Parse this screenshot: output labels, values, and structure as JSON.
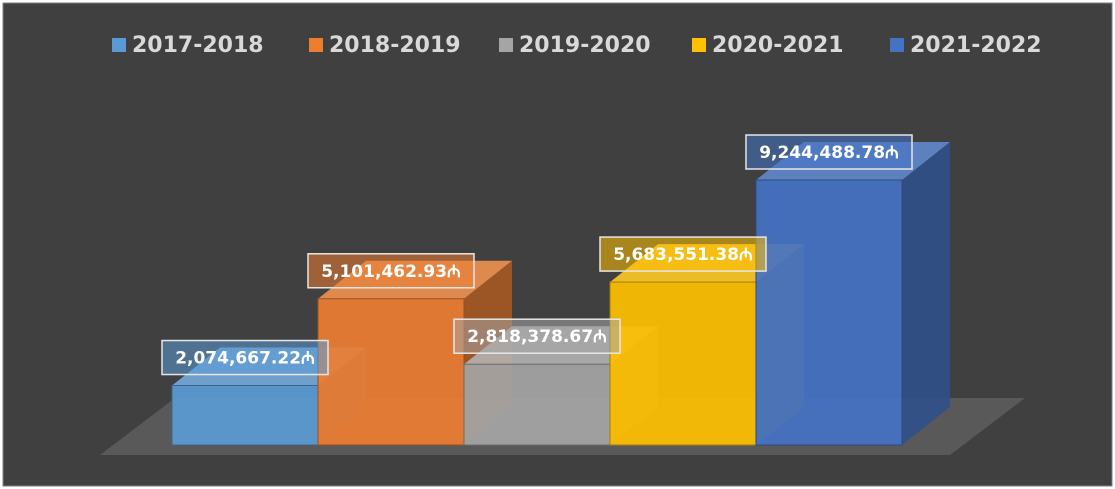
{
  "chart_data": {
    "type": "bar3d",
    "series": [
      {
        "name": "2017-2018",
        "color": "#5b9bd5",
        "values": [
          2074667.22
        ],
        "value_labels": [
          "2,074,667.22₼"
        ]
      },
      {
        "name": "2018-2019",
        "color": "#ed7d31",
        "values": [
          5101462.93
        ],
        "value_labels": [
          "5,101,462.93₼"
        ]
      },
      {
        "name": "2019-2020",
        "color": "#a5a5a5",
        "values": [
          2818378.67
        ],
        "value_labels": [
          "2,818,378.67₼"
        ]
      },
      {
        "name": "2020-2021",
        "color": "#ffc000",
        "values": [
          5683551.38
        ],
        "value_labels": [
          "5,683,551.38₼"
        ]
      },
      {
        "name": "2021-2022",
        "color": "#4472c4",
        "values": [
          9244488.78
        ],
        "value_labels": [
          "9,244,488.78₼"
        ]
      }
    ],
    "legend": "top"
  }
}
